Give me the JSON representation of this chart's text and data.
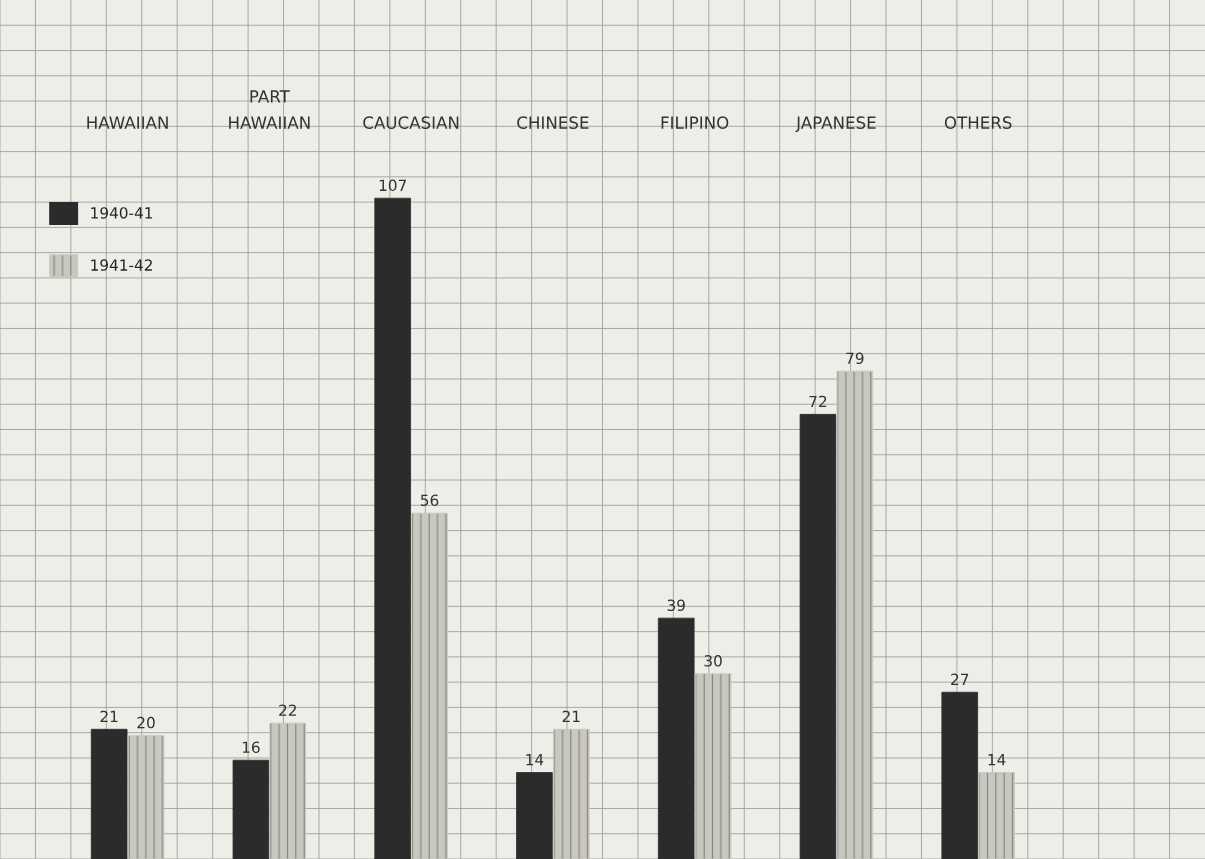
{
  "chart_data": {
    "type": "bar",
    "categories": [
      "HAWAIIAN",
      "PART\nHAWAIIAN",
      "CAUCASIAN",
      "CHINESE",
      "FILIPINO",
      "JAPANESE",
      "OTHERS"
    ],
    "series": [
      {
        "name": "1940-41",
        "color": "#2b2b2b",
        "values": [
          21,
          16,
          107,
          14,
          39,
          72,
          27
        ]
      },
      {
        "name": "1941-42",
        "color": "#c9c8c0",
        "values": [
          20,
          22,
          56,
          21,
          30,
          79,
          14
        ]
      }
    ],
    "data_labels": true,
    "grid": true,
    "legend": "top left"
  }
}
